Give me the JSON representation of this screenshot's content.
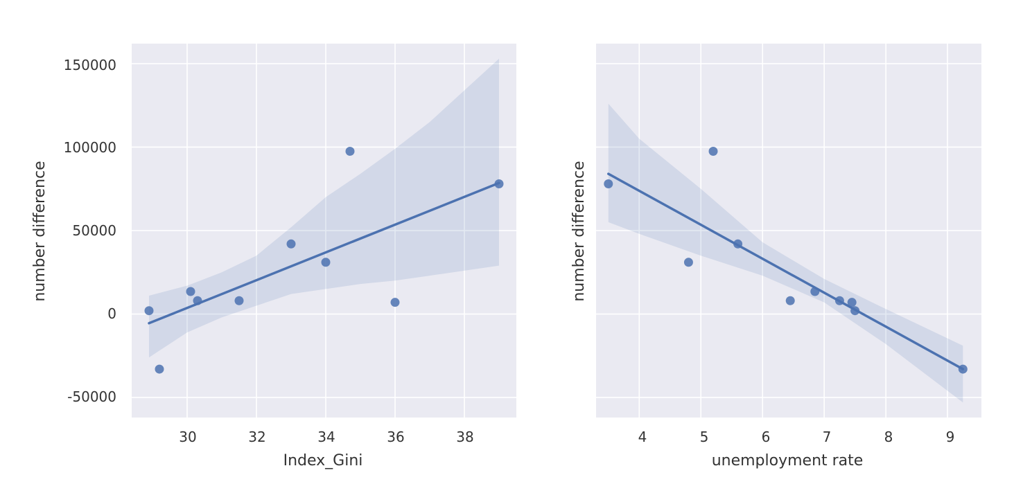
{
  "chart_data": [
    {
      "type": "scatter",
      "xlabel": "Index_Gini",
      "ylabel": "number difference",
      "xlim": [
        28.4,
        39.5
      ],
      "ylim": [
        -62000,
        162000
      ],
      "xticks": [
        30,
        32,
        34,
        36,
        38
      ],
      "yticks": [
        -50000,
        0,
        50000,
        100000,
        150000
      ],
      "grid": true,
      "points": [
        {
          "x": 28.9,
          "y": 2000
        },
        {
          "x": 29.2,
          "y": -33000
        },
        {
          "x": 30.1,
          "y": 13500
        },
        {
          "x": 30.3,
          "y": 8000
        },
        {
          "x": 31.5,
          "y": 8000
        },
        {
          "x": 33.0,
          "y": 42000
        },
        {
          "x": 34.0,
          "y": 31000
        },
        {
          "x": 34.7,
          "y": 97500
        },
        {
          "x": 36.0,
          "y": 7000
        },
        {
          "x": 39.0,
          "y": 78000
        }
      ],
      "regression": {
        "x": [
          28.9,
          39.0
        ],
        "y": [
          -5500,
          78500
        ]
      },
      "confidence_band": {
        "x": [
          28.9,
          30.0,
          31.0,
          32.0,
          33.0,
          34.0,
          35.0,
          36.0,
          37.0,
          38.0,
          39.0
        ],
        "upper": [
          11000,
          17000,
          25000,
          35000,
          52000,
          70000,
          84000,
          99000,
          115000,
          134000,
          153000
        ],
        "lower": [
          -26000,
          -11000,
          -2000,
          5000,
          12000,
          15000,
          18000,
          20000,
          23000,
          26000,
          29000
        ]
      }
    },
    {
      "type": "scatter",
      "xlabel": "unemployment rate",
      "ylabel": "number difference",
      "xlim": [
        3.3,
        9.55
      ],
      "ylim": [
        -62000,
        162000
      ],
      "xticks": [
        4,
        5,
        6,
        7,
        8,
        9
      ],
      "yticks": [
        -50000,
        0,
        50000,
        100000,
        150000
      ],
      "show_ytick_labels": false,
      "grid": true,
      "points": [
        {
          "x": 3.5,
          "y": 78000
        },
        {
          "x": 4.8,
          "y": 31000
        },
        {
          "x": 5.2,
          "y": 97500
        },
        {
          "x": 5.6,
          "y": 42000
        },
        {
          "x": 6.45,
          "y": 8000
        },
        {
          "x": 6.85,
          "y": 13500
        },
        {
          "x": 7.25,
          "y": 8000
        },
        {
          "x": 7.45,
          "y": 7000
        },
        {
          "x": 7.5,
          "y": 2000
        },
        {
          "x": 9.25,
          "y": -33000
        }
      ],
      "regression": {
        "x": [
          3.5,
          9.25
        ],
        "y": [
          84000,
          -33000
        ]
      },
      "confidence_band": {
        "x": [
          3.5,
          4.0,
          5.0,
          6.0,
          7.0,
          8.0,
          9.25
        ],
        "upper": [
          126000,
          105000,
          75000,
          43000,
          21000,
          3000,
          -19000
        ],
        "lower": [
          55000,
          48000,
          35000,
          23000,
          7000,
          -18000,
          -53000
        ]
      }
    }
  ],
  "colors": {
    "background": "#eaeaf2",
    "grid": "#ffffff",
    "series": "#4c72b0",
    "band": "#4c72b0"
  }
}
